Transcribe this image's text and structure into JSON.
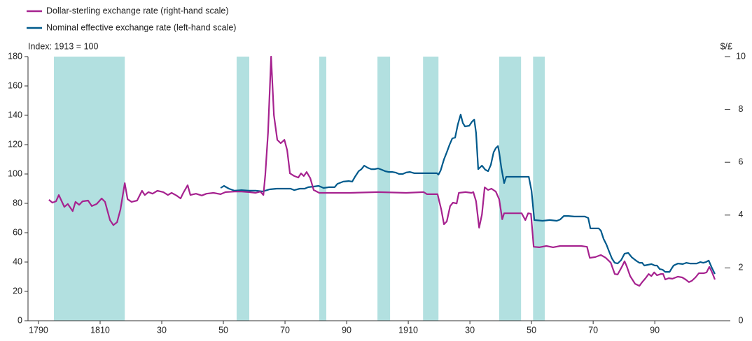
{
  "chart_data": {
    "type": "line",
    "y_label": "Index:  1913 = 100",
    "y2_label": "$/£",
    "xlim": [
      1786.6,
      2014.5
    ],
    "xticks": [
      {
        "value": 1790,
        "label": "1790"
      },
      {
        "value": 1810,
        "label": "1810"
      },
      {
        "value": 1830,
        "label": "30"
      },
      {
        "value": 1850,
        "label": "50"
      },
      {
        "value": 1870,
        "label": "70"
      },
      {
        "value": 1890,
        "label": "90"
      },
      {
        "value": 1910,
        "label": "1910"
      },
      {
        "value": 1930,
        "label": "30"
      },
      {
        "value": 1950,
        "label": "50"
      },
      {
        "value": 1970,
        "label": "70"
      },
      {
        "value": 1990,
        "label": "90"
      }
    ],
    "ylim": [
      0,
      180
    ],
    "yticks": [
      0,
      20,
      40,
      60,
      80,
      100,
      120,
      140,
      160,
      180
    ],
    "y2lim": [
      0,
      10
    ],
    "y2ticks": [
      0,
      2,
      4,
      6,
      8,
      10
    ],
    "shaded_periods": [
      [
        1795.0,
        1818.0
      ],
      [
        1854.3,
        1858.4
      ],
      [
        1881.1,
        1883.4
      ],
      [
        1900.0,
        1904.1
      ],
      [
        1914.8,
        1919.8
      ],
      [
        1939.5,
        1946.6
      ],
      [
        1950.5,
        1954.3
      ]
    ],
    "shade_color": "#b2e0e0",
    "series": [
      {
        "name": "Dollar-sterling exchange rate (right-hand scale)",
        "color": "#a6228f",
        "axis": "y2",
        "x": [
          1793.4,
          1794.5,
          1795.7,
          1796.6,
          1798.4,
          1799.5,
          1801.1,
          1802.0,
          1803.2,
          1804.3,
          1806.1,
          1807.3,
          1808.9,
          1810.5,
          1811.6,
          1813.2,
          1814.3,
          1815.5,
          1816.6,
          1818.0,
          1818.9,
          1820.2,
          1822.0,
          1823.6,
          1824.5,
          1825.7,
          1827.0,
          1828.6,
          1830.5,
          1832.0,
          1833.2,
          1834.8,
          1836.1,
          1837.0,
          1838.4,
          1839.3,
          1841.1,
          1843.0,
          1844.5,
          1846.8,
          1849.1,
          1850.7,
          1853.6,
          1855.9,
          1858.2,
          1860.5,
          1862.0,
          1863.0,
          1863.6,
          1864.5,
          1865.5,
          1866.4,
          1867.5,
          1868.6,
          1869.8,
          1870.7,
          1871.6,
          1873.0,
          1874.3,
          1875.2,
          1876.1,
          1877.0,
          1878.2,
          1879.3,
          1881.1,
          1884.3,
          1891.1,
          1900.2,
          1909.3,
          1915.0,
          1916.1,
          1919.5,
          1920.7,
          1921.6,
          1922.5,
          1923.6,
          1924.5,
          1925.7,
          1926.4,
          1928.6,
          1930.5,
          1931.1,
          1932.0,
          1933.0,
          1933.9,
          1934.8,
          1935.9,
          1937.0,
          1938.4,
          1939.5,
          1940.5,
          1941.1,
          1946.8,
          1948.0,
          1948.9,
          1949.8,
          1950.7,
          1952.5,
          1954.8,
          1957.0,
          1959.3,
          1966.1,
          1968.0,
          1968.9,
          1970.7,
          1972.5,
          1974.1,
          1975.7,
          1977.0,
          1977.95,
          1979.3,
          1980.2,
          1980.9,
          1982.0,
          1983.6,
          1985.0,
          1985.9,
          1987.0,
          1988.0,
          1988.9,
          1989.8,
          1990.7,
          1992.0,
          1992.7,
          1993.4,
          1994.5,
          1995.7,
          1997.5,
          1998.9,
          2000.0,
          2001.1,
          2002.0,
          2003.2,
          2004.3,
          2005.9,
          2006.8,
          2007.7,
          2008.6,
          2009.5
        ],
        "values": [
          4.58,
          4.47,
          4.52,
          4.76,
          4.31,
          4.42,
          4.15,
          4.5,
          4.39,
          4.52,
          4.55,
          4.34,
          4.42,
          4.63,
          4.5,
          3.81,
          3.62,
          3.73,
          4.21,
          5.21,
          4.6,
          4.5,
          4.55,
          4.92,
          4.76,
          4.87,
          4.81,
          4.92,
          4.87,
          4.76,
          4.84,
          4.74,
          4.63,
          4.84,
          5.13,
          4.76,
          4.81,
          4.74,
          4.81,
          4.84,
          4.79,
          4.87,
          4.89,
          4.89,
          4.87,
          4.84,
          4.89,
          4.76,
          5.53,
          7.12,
          10.0,
          7.78,
          6.85,
          6.72,
          6.85,
          6.46,
          5.58,
          5.48,
          5.42,
          5.58,
          5.48,
          5.63,
          5.4,
          4.95,
          4.84,
          4.84,
          4.84,
          4.87,
          4.84,
          4.87,
          4.79,
          4.79,
          4.21,
          3.65,
          3.76,
          4.34,
          4.47,
          4.44,
          4.84,
          4.87,
          4.84,
          4.87,
          4.52,
          3.52,
          4.02,
          5.05,
          4.95,
          5.0,
          4.89,
          4.6,
          3.84,
          4.07,
          4.07,
          3.81,
          4.07,
          4.05,
          2.8,
          2.78,
          2.83,
          2.78,
          2.83,
          2.83,
          2.8,
          2.38,
          2.41,
          2.49,
          2.38,
          2.2,
          1.77,
          1.75,
          2.04,
          2.25,
          2.06,
          1.69,
          1.4,
          1.32,
          1.46,
          1.61,
          1.77,
          1.69,
          1.83,
          1.72,
          1.77,
          1.77,
          1.56,
          1.61,
          1.59,
          1.67,
          1.64,
          1.56,
          1.46,
          1.51,
          1.64,
          1.8,
          1.8,
          1.83,
          2.04,
          1.83,
          1.56
        ]
      },
      {
        "name": "Nominal effective exchange rate (left-hand scale)",
        "color": "#005a8c",
        "axis": "y",
        "x": [
          1849.1,
          1850.2,
          1851.8,
          1853.6,
          1855.9,
          1858.2,
          1860.5,
          1862.7,
          1865.0,
          1867.3,
          1869.5,
          1871.8,
          1873.0,
          1874.8,
          1876.4,
          1877.5,
          1879.1,
          1880.9,
          1882.5,
          1884.3,
          1886.1,
          1887.0,
          1888.9,
          1890.7,
          1891.8,
          1892.7,
          1893.9,
          1894.8,
          1895.7,
          1896.8,
          1898.0,
          1899.1,
          1900.2,
          1901.4,
          1902.5,
          1903.6,
          1904.8,
          1905.9,
          1907.0,
          1908.2,
          1909.3,
          1910.5,
          1912.0,
          1913.9,
          1916.1,
          1919.3,
          1919.8,
          1920.5,
          1921.6,
          1922.5,
          1923.4,
          1924.3,
          1925.2,
          1926.1,
          1927.0,
          1927.7,
          1928.4,
          1929.8,
          1930.7,
          1931.4,
          1932.0,
          1932.7,
          1933.9,
          1935.0,
          1935.9,
          1936.8,
          1937.7,
          1938.4,
          1939.1,
          1939.5,
          1940.2,
          1941.1,
          1941.8,
          1949.1,
          1950.0,
          1950.9,
          1953.6,
          1955.9,
          1958.2,
          1959.3,
          1960.5,
          1962.0,
          1963.9,
          1967.3,
          1968.4,
          1969.1,
          1971.8,
          1972.5,
          1973.4,
          1974.3,
          1975.2,
          1976.1,
          1977.0,
          1977.95,
          1979.1,
          1980.2,
          1981.4,
          1982.5,
          1983.9,
          1985.0,
          1985.9,
          1986.6,
          1987.7,
          1988.9,
          1990.0,
          1990.7,
          1991.6,
          1992.5,
          1993.4,
          1994.1,
          1994.8,
          1995.5,
          1996.1,
          1997.5,
          1999.1,
          2000.2,
          2001.4,
          2002.5,
          2003.6,
          2004.8,
          2005.7,
          2006.6,
          2007.5,
          2008.6,
          2009.5
        ],
        "values": [
          90.5,
          91.9,
          90.0,
          88.6,
          89.0,
          88.6,
          88.6,
          88.1,
          89.5,
          90.0,
          90.0,
          90.0,
          89.0,
          90.0,
          90.0,
          91.0,
          91.4,
          91.9,
          90.5,
          91.0,
          91.0,
          93.3,
          94.8,
          95.2,
          94.8,
          98.1,
          101.9,
          103.3,
          105.7,
          104.3,
          103.3,
          103.3,
          103.8,
          102.9,
          101.9,
          101.4,
          101.4,
          101.0,
          100.0,
          100.0,
          101.0,
          101.4,
          100.5,
          100.5,
          100.5,
          100.5,
          99.5,
          102.4,
          110.0,
          114.8,
          120.0,
          124.3,
          124.8,
          133.8,
          140.5,
          134.8,
          132.4,
          132.9,
          135.7,
          137.1,
          128.1,
          103.3,
          105.7,
          102.9,
          101.9,
          106.2,
          114.8,
          117.6,
          119.0,
          114.8,
          104.3,
          93.8,
          98.1,
          98.1,
          88.6,
          68.6,
          68.1,
          68.6,
          68.1,
          69.0,
          71.4,
          71.4,
          71.0,
          71.0,
          70.0,
          62.9,
          62.9,
          61.4,
          55.7,
          51.9,
          47.1,
          42.4,
          39.5,
          39.0,
          41.4,
          45.7,
          46.2,
          43.3,
          41.0,
          39.5,
          39.5,
          37.6,
          38.1,
          38.6,
          37.6,
          37.6,
          35.2,
          34.8,
          33.3,
          33.3,
          33.3,
          35.7,
          37.6,
          39.0,
          38.6,
          39.5,
          39.0,
          39.0,
          39.0,
          40.0,
          39.5,
          40.0,
          41.0,
          35.7,
          31.9
        ]
      }
    ]
  }
}
